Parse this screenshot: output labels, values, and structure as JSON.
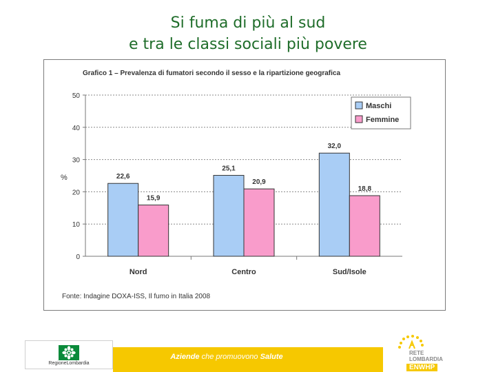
{
  "slide": {
    "title_line1": "Si fuma di più al sud",
    "title_line2": "e tra le classi sociali più povere"
  },
  "chart_data": {
    "type": "bar",
    "title": "Grafico 1 – Prevalenza di fumatori secondo il sesso e la ripartizione geografica",
    "categories": [
      "Nord",
      "Centro",
      "Sud/Isole"
    ],
    "series": [
      {
        "name": "Maschi",
        "values": [
          22.6,
          25.1,
          32.0
        ],
        "labels": [
          "22,6",
          "25,1",
          "32,0"
        ],
        "color": "#a9cdf5"
      },
      {
        "name": "Femmine",
        "values": [
          15.9,
          20.9,
          18.8
        ],
        "labels": [
          "15,9",
          "20,9",
          "18,8"
        ],
        "color": "#f99ccb"
      }
    ],
    "ylabel": "%",
    "ylim": [
      0,
      50
    ],
    "yticks": [
      0,
      10,
      20,
      30,
      40,
      50
    ],
    "grid": true,
    "legend_position": "top-right",
    "source": "Fonte: Indagine DOXA-ISS, Il fumo in Italia 2008"
  },
  "footer": {
    "bold_word1": "Aziende",
    "light_text": " che promuovono ",
    "bold_word2": "Salute"
  },
  "logos": {
    "left_text": "RegioneLombardia",
    "right_line1": "RETE",
    "right_line2": "LOMBARDIA",
    "right_line3": "ENWHP"
  },
  "colors": {
    "title": "#1f6d2a",
    "footer_bar": "#f6c800"
  }
}
